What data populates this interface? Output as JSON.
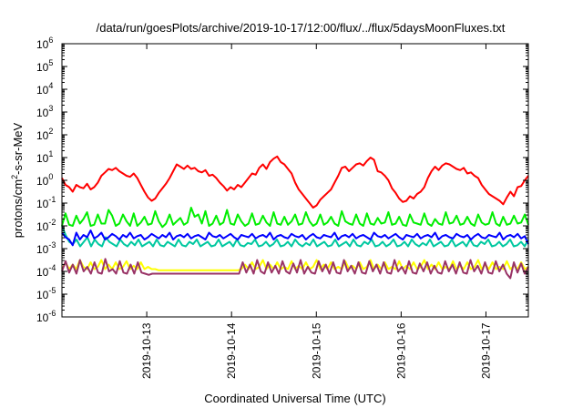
{
  "chart_data": {
    "type": "line",
    "title": "/data/run/goesPlots/archive/2019-10-17/12:00/flux/../flux/5daysMoonFluxes.txt",
    "xlabel": "Coordinated Universal Time (UTC)",
    "ylabel": "protons/cm²-s-sr-MeV",
    "ylabel_parts": {
      "base": "protons/cm",
      "sup": "2",
      "rest": "-s-sr-MeV"
    },
    "yscale": "log",
    "ylim_exponents": [
      -6,
      6
    ],
    "y_tick_labels": [
      {
        "base": "10",
        "exp": "-6"
      },
      {
        "base": "10",
        "exp": "-5"
      },
      {
        "base": "10",
        "exp": "-4"
      },
      {
        "base": "10",
        "exp": "-3"
      },
      {
        "base": "10",
        "exp": "-2"
      },
      {
        "base": "10",
        "exp": "-1"
      },
      {
        "base": "10",
        "exp": "0"
      },
      {
        "base": "10",
        "exp": "1"
      },
      {
        "base": "10",
        "exp": "2"
      },
      {
        "base": "10",
        "exp": "3"
      },
      {
        "base": "10",
        "exp": "4"
      },
      {
        "base": "10",
        "exp": "5"
      },
      {
        "base": "10",
        "exp": "6"
      }
    ],
    "x_ticks": [
      "2019-10-13",
      "2019-10-14",
      "2019-10-15",
      "2019-10-16",
      "2019-10-17"
    ],
    "xlim": [
      "2019-10-12 00:00",
      "2019-10-17 12:00"
    ],
    "grid": false,
    "series": [
      {
        "color": "#ff0000",
        "values_log10": [
          0.1,
          -0.2,
          -0.3,
          -0.5,
          -0.2,
          -0.3,
          -0.35,
          -0.15,
          -0.4,
          -0.3,
          -0.1,
          0.2,
          0.35,
          0.5,
          0.45,
          0.55,
          0.4,
          0.3,
          0.2,
          0.15,
          0.3,
          0.1,
          -0.2,
          -0.5,
          -0.75,
          -0.9,
          -0.8,
          -0.55,
          -0.35,
          -0.15,
          0.1,
          0.4,
          0.7,
          0.6,
          0.5,
          0.65,
          0.5,
          0.55,
          0.4,
          0.35,
          0.45,
          0.2,
          0.25,
          0.1,
          -0.1,
          -0.25,
          -0.45,
          -0.3,
          -0.4,
          -0.2,
          -0.3,
          -0.1,
          0.1,
          0.3,
          0.25,
          0.55,
          0.7,
          0.5,
          0.8,
          0.95,
          1.05,
          0.8,
          0.7,
          0.5,
          0.3,
          -0.1,
          -0.4,
          -0.6,
          -0.8,
          -1.0,
          -1.2,
          -1.1,
          -0.85,
          -0.7,
          -0.55,
          -0.4,
          -0.1,
          0.2,
          0.55,
          0.6,
          0.4,
          0.55,
          0.7,
          0.75,
          0.65,
          0.85,
          1.0,
          0.9,
          0.4,
          0.35,
          0.2,
          0.0,
          -0.35,
          -0.55,
          -0.8,
          -0.95,
          -0.9,
          -0.7,
          -0.8,
          -0.6,
          -0.5,
          -0.3,
          0.1,
          0.4,
          0.6,
          0.45,
          0.65,
          0.75,
          0.7,
          0.6,
          0.5,
          0.45,
          0.55,
          0.3,
          0.35,
          0.2,
          0.1,
          -0.2,
          -0.4,
          -0.6,
          -0.7,
          -0.8,
          -0.9,
          -1.05,
          -0.75,
          -0.5,
          -0.7,
          -0.3,
          -0.25,
          0.0,
          0.2
        ]
      },
      {
        "color": "#00ee00",
        "values_log10": [
          -2.0,
          -1.45,
          -1.95,
          -2.0,
          -1.55,
          -1.9,
          -1.7,
          -1.4,
          -2.0,
          -1.95,
          -1.5,
          -1.9,
          -1.9,
          -1.3,
          -1.55,
          -2.0,
          -1.9,
          -1.5,
          -1.8,
          -2.0,
          -1.45,
          -2.0,
          -1.85,
          -1.6,
          -1.95,
          -1.9,
          -1.35,
          -1.8,
          -2.05,
          -1.9,
          -1.5,
          -1.95,
          -1.8,
          -1.65,
          -1.95,
          -1.85,
          -1.2,
          -1.6,
          -1.5,
          -1.9,
          -1.35,
          -2.0,
          -1.9,
          -1.55,
          -1.95,
          -1.85,
          -1.3,
          -1.9,
          -1.95,
          -1.5,
          -1.8,
          -2.0,
          -1.9,
          -1.45,
          -1.95,
          -1.9,
          -1.55,
          -1.85,
          -2.0,
          -1.4,
          -1.9,
          -1.95,
          -1.6,
          -1.95,
          -1.8,
          -1.5,
          -1.95,
          -1.9,
          -1.4,
          -1.8,
          -2.0,
          -1.9,
          -1.5,
          -1.95,
          -1.85,
          -1.6,
          -1.9,
          -2.0,
          -1.35,
          -1.8,
          -1.9,
          -1.95,
          -1.5,
          -1.9,
          -2.0,
          -1.45,
          -1.9,
          -1.95,
          -1.65,
          -1.9,
          -1.85,
          -1.4,
          -1.95,
          -1.9,
          -1.6,
          -1.95,
          -2.0,
          -1.5,
          -1.85,
          -1.9,
          -1.95,
          -1.45,
          -1.9,
          -2.0,
          -1.7,
          -1.9,
          -1.95,
          -1.4,
          -1.9,
          -1.85,
          -1.55,
          -1.95,
          -1.9,
          -1.6,
          -1.9,
          -2.0,
          -1.5,
          -1.85,
          -1.95,
          -1.9,
          -1.4,
          -1.9,
          -2.0,
          -1.6,
          -1.95,
          -1.9,
          -1.55,
          -1.9,
          -1.85,
          -1.5,
          -1.95
        ]
      },
      {
        "color": "#00c8a0",
        "values_log10": [
          -2.0,
          -2.4,
          -2.7,
          -2.8,
          -2.6,
          -2.9,
          -2.7,
          -2.5,
          -2.9,
          -2.6,
          -2.8,
          -2.9,
          -2.5,
          -2.7,
          -2.8,
          -2.9,
          -2.6,
          -2.8,
          -2.9,
          -2.7,
          -2.85,
          -2.6,
          -2.9,
          -2.8,
          -2.7,
          -2.9,
          -2.6,
          -2.85,
          -2.9,
          -2.7,
          -2.8,
          -2.9,
          -2.6,
          -2.85,
          -2.9,
          -2.7,
          -2.8,
          -2.6,
          -2.9,
          -2.8,
          -2.7,
          -2.9,
          -2.85,
          -2.6,
          -2.9,
          -2.8,
          -2.7,
          -2.9,
          -2.6,
          -2.85,
          -2.9,
          -2.75,
          -2.8,
          -2.6,
          -2.9,
          -2.85,
          -2.7,
          -2.9,
          -2.8,
          -2.6,
          -2.9,
          -2.85,
          -2.7,
          -2.9,
          -2.6,
          -2.8,
          -2.9,
          -2.75,
          -2.85,
          -2.6,
          -2.9,
          -2.8,
          -2.7,
          -2.9,
          -2.85,
          -2.6,
          -2.9,
          -2.8,
          -2.7,
          -2.9,
          -2.6,
          -2.85,
          -2.9,
          -2.7,
          -2.8,
          -2.6,
          -2.9,
          -2.85,
          -2.7,
          -2.9,
          -2.8,
          -2.6,
          -2.9,
          -2.85,
          -2.7,
          -2.9,
          -2.6,
          -2.8,
          -2.9,
          -2.75,
          -2.85,
          -2.6,
          -2.9,
          -2.8,
          -2.7,
          -2.9,
          -2.85,
          -2.6,
          -2.9,
          -2.8,
          -2.7,
          -2.9,
          -2.6,
          -2.85,
          -2.9,
          -2.7,
          -2.8,
          -2.6,
          -2.9,
          -2.85,
          -2.7,
          -2.9,
          -2.8,
          -2.6,
          -2.9,
          -2.85,
          -2.7,
          -2.9,
          -2.6
        ]
      },
      {
        "color": "#0000ff",
        "values_log10": [
          -2.3,
          -2.5,
          -2.6,
          -2.85,
          -2.3,
          -2.6,
          -2.4,
          -2.5,
          -2.2,
          -2.55,
          -2.45,
          -2.3,
          -2.6,
          -2.5,
          -2.35,
          -2.45,
          -2.6,
          -2.4,
          -2.5,
          -2.3,
          -2.55,
          -2.45,
          -2.4,
          -2.6,
          -2.5,
          -2.35,
          -2.45,
          -2.55,
          -2.4,
          -2.5,
          -2.3,
          -2.6,
          -2.45,
          -2.4,
          -2.5,
          -2.35,
          -2.55,
          -2.45,
          -2.4,
          -2.5,
          -2.6,
          -2.3,
          -2.45,
          -2.5,
          -2.4,
          -2.55,
          -2.45,
          -2.35,
          -2.5,
          -2.6,
          -2.4,
          -2.45,
          -2.5,
          -2.35,
          -2.55,
          -2.45,
          -2.4,
          -2.5,
          -2.3,
          -2.6,
          -2.45,
          -2.4,
          -2.5,
          -2.55,
          -2.35,
          -2.45,
          -2.5,
          -2.4,
          -2.6,
          -2.45,
          -2.35,
          -2.5,
          -2.55,
          -2.4,
          -2.45,
          -2.5,
          -2.3,
          -2.6,
          -2.45,
          -2.4,
          -2.5,
          -2.35,
          -2.55,
          -2.45,
          -2.4,
          -2.5,
          -2.6,
          -2.3,
          -2.45,
          -2.5,
          -2.4,
          -2.55,
          -2.45,
          -2.35,
          -2.5,
          -2.6,
          -2.4,
          -2.45,
          -2.5,
          -2.35,
          -2.55,
          -2.45,
          -2.4,
          -2.5,
          -2.3,
          -2.6,
          -2.45,
          -2.4,
          -2.5,
          -2.55,
          -2.35,
          -2.45,
          -2.5,
          -2.4,
          -2.6,
          -2.45,
          -2.35,
          -2.5,
          -2.55,
          -2.4,
          -2.45,
          -2.5,
          -2.3,
          -2.6,
          -2.45,
          -2.4,
          -2.5,
          -2.35,
          -2.55,
          -2.45,
          -2.8
        ]
      },
      {
        "color": "#ffff00",
        "values_log10": [
          -3.9,
          -3.6,
          -3.9,
          -3.7,
          -3.9,
          -3.5,
          -3.8,
          -3.9,
          -3.6,
          -3.9,
          -3.8,
          -3.5,
          -3.9,
          -3.7,
          -3.9,
          -3.6,
          -3.9,
          -3.8,
          -3.55,
          -3.9,
          -3.75,
          -3.9,
          -3.6,
          -3.9,
          -3.8,
          -3.9,
          -3.9,
          -3.95,
          -3.95,
          -3.95,
          -3.95,
          -3.95,
          -3.95,
          -3.95,
          -3.95,
          -3.95,
          -3.95,
          -3.95,
          -3.95,
          -3.95,
          -3.95,
          -3.95,
          -3.95,
          -3.95,
          -3.95,
          -3.95,
          -3.95,
          -3.95,
          -3.95,
          -3.95,
          -3.9,
          -3.7,
          -3.9,
          -3.6,
          -3.9,
          -3.8,
          -3.5,
          -3.9,
          -3.7,
          -3.9,
          -3.6,
          -3.9,
          -3.8,
          -3.9,
          -3.55,
          -3.9,
          -3.75,
          -3.9,
          -3.6,
          -3.9,
          -3.8,
          -3.5,
          -3.9,
          -3.7,
          -3.9,
          -3.6,
          -3.9,
          -3.8,
          -3.9,
          -3.55,
          -3.9,
          -3.75,
          -3.9,
          -3.6,
          -3.9,
          -3.8,
          -3.5,
          -3.9,
          -3.7,
          -3.9,
          -3.6,
          -3.9,
          -3.8,
          -3.9,
          -3.55,
          -3.9,
          -3.75,
          -3.9,
          -3.6,
          -3.9,
          -3.8,
          -3.5,
          -3.9,
          -3.7,
          -3.9,
          -3.6,
          -3.9,
          -3.8,
          -3.9,
          -3.55,
          -3.9,
          -3.75,
          -3.9,
          -3.6,
          -3.9,
          -3.8,
          -3.5,
          -3.9,
          -3.7,
          -3.9,
          -3.6,
          -3.9,
          -3.8,
          -3.9,
          -3.55,
          -3.9,
          -3.75,
          -3.9,
          -3.6,
          -3.9,
          -3.8
        ]
      },
      {
        "color": "#993366",
        "values_log10": [
          -4.0,
          -3.55,
          -4.05,
          -3.7,
          -4.1,
          -3.5,
          -4.0,
          -3.8,
          -4.1,
          -3.6,
          -4.05,
          -4.1,
          -3.45,
          -4.0,
          -3.9,
          -4.1,
          -3.55,
          -4.05,
          -4.1,
          -3.7,
          -4.1,
          -3.6,
          -4.05,
          -4.1,
          -4.15,
          -4.1,
          -4.1,
          -4.1,
          -4.1,
          -4.1,
          -4.1,
          -4.1,
          -4.1,
          -4.1,
          -4.1,
          -4.1,
          -4.1,
          -4.1,
          -4.1,
          -4.1,
          -4.1,
          -4.1,
          -4.1,
          -4.1,
          -4.1,
          -4.1,
          -4.1,
          -4.1,
          -4.1,
          -4.1,
          -3.6,
          -4.05,
          -3.7,
          -4.1,
          -3.5,
          -4.0,
          -4.1,
          -3.6,
          -4.05,
          -3.75,
          -4.1,
          -3.55,
          -4.0,
          -4.1,
          -3.65,
          -4.05,
          -3.5,
          -4.1,
          -3.8,
          -4.05,
          -4.1,
          -3.55,
          -4.0,
          -3.7,
          -4.1,
          -3.6,
          -4.05,
          -4.1,
          -3.5,
          -4.0,
          -3.75,
          -4.1,
          -3.6,
          -4.05,
          -4.1,
          -3.55,
          -4.0,
          -3.7,
          -4.1,
          -3.6,
          -4.05,
          -4.1,
          -3.5,
          -4.0,
          -3.8,
          -4.1,
          -3.55,
          -4.05,
          -4.1,
          -3.65,
          -4.0,
          -3.6,
          -4.1,
          -3.75,
          -4.05,
          -4.1,
          -3.55,
          -4.0,
          -3.7,
          -4.1,
          -3.6,
          -4.05,
          -4.1,
          -3.5,
          -4.0,
          -3.75,
          -4.1,
          -3.6,
          -4.05,
          -4.1,
          -3.55,
          -4.0,
          -3.7,
          -4.1,
          -4.3,
          -3.6,
          -4.05,
          -3.65,
          -4.1,
          -3.8
        ]
      }
    ]
  }
}
